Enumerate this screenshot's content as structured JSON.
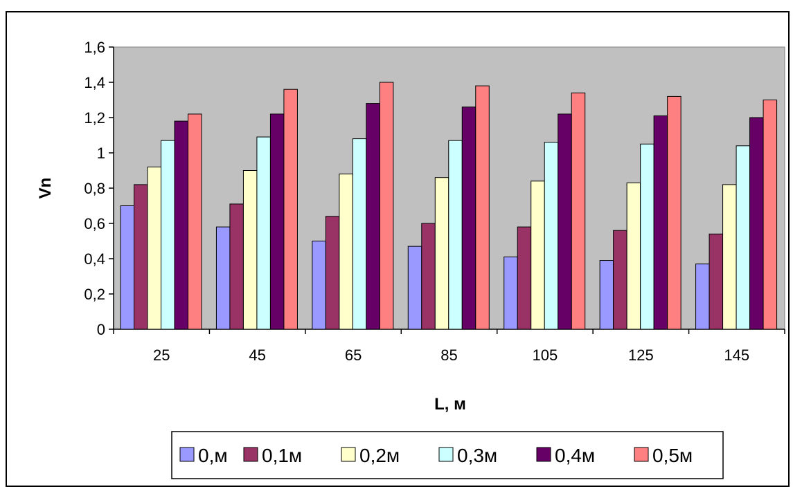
{
  "chart_data": {
    "type": "bar",
    "title": "",
    "xlabel": "L, м",
    "ylabel": "Vn",
    "categories": [
      "25",
      "45",
      "65",
      "85",
      "105",
      "125",
      "145"
    ],
    "ylim": [
      0,
      1.6
    ],
    "yticks": [
      "0",
      "0,2",
      "0,4",
      "0,6",
      "0,8",
      "1",
      "1,2",
      "1,4",
      "1,6"
    ],
    "grid": false,
    "legend_position": "bottom",
    "plot_background": "#c0c0c0",
    "series": [
      {
        "name": "0,м",
        "color": "#9999ff",
        "values": [
          0.7,
          0.58,
          0.5,
          0.47,
          0.41,
          0.39,
          0.37
        ]
      },
      {
        "name": "0,1м",
        "color": "#993366",
        "values": [
          0.82,
          0.71,
          0.64,
          0.6,
          0.58,
          0.56,
          0.54
        ]
      },
      {
        "name": "0,2м",
        "color": "#ffffcc",
        "values": [
          0.92,
          0.9,
          0.88,
          0.86,
          0.84,
          0.83,
          0.82
        ]
      },
      {
        "name": "0,3м",
        "color": "#ccffff",
        "values": [
          1.07,
          1.09,
          1.08,
          1.07,
          1.06,
          1.05,
          1.04
        ]
      },
      {
        "name": "0,4м",
        "color": "#660066",
        "values": [
          1.18,
          1.22,
          1.28,
          1.26,
          1.22,
          1.21,
          1.2
        ]
      },
      {
        "name": "0,5м",
        "color": "#ff8080",
        "values": [
          1.22,
          1.36,
          1.4,
          1.38,
          1.34,
          1.32,
          1.3
        ]
      }
    ]
  }
}
